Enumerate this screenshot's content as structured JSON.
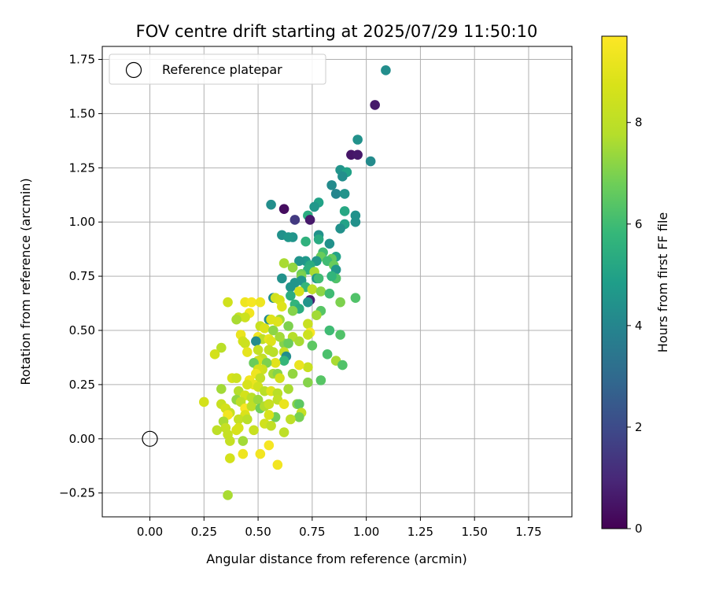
{
  "chart_data": {
    "type": "scatter",
    "title": "FOV centre drift starting at 2025/07/29 11:50:10",
    "xlabel": "Angular distance from reference (arcmin)",
    "ylabel": "Rotation from reference (arcmin)",
    "colorbar_label": "Hours from first FF file",
    "xlim": [
      -0.22,
      1.95
    ],
    "ylim": [
      -0.36,
      1.81
    ],
    "clim": [
      0,
      9.7
    ],
    "xticks": [
      "0.00",
      "0.25",
      "0.50",
      "0.75",
      "1.00",
      "1.25",
      "1.50",
      "1.75"
    ],
    "yticks": [
      "−0.25",
      "0.00",
      "0.25",
      "0.50",
      "0.75",
      "1.00",
      "1.25",
      "1.50",
      "1.75"
    ],
    "colorbar_ticks": [
      "0",
      "2",
      "4",
      "6",
      "8"
    ],
    "grid": true,
    "legend": {
      "position": "top-left",
      "entries": [
        "Reference platepar"
      ]
    },
    "reference_point": {
      "x": 0.0,
      "y": 0.0
    },
    "points": [
      [
        1.09,
        1.7,
        4.3
      ],
      [
        1.04,
        1.54,
        0.6
      ],
      [
        0.96,
        1.38,
        4.4
      ],
      [
        0.93,
        1.31,
        0.5
      ],
      [
        0.96,
        1.31,
        0.6
      ],
      [
        1.02,
        1.28,
        4.2
      ],
      [
        0.88,
        1.24,
        4.5
      ],
      [
        0.91,
        1.23,
        5.0
      ],
      [
        0.89,
        1.21,
        4.3
      ],
      [
        0.84,
        1.17,
        4.2
      ],
      [
        0.86,
        1.13,
        4.0
      ],
      [
        0.9,
        1.13,
        4.5
      ],
      [
        0.56,
        1.08,
        4.3
      ],
      [
        0.62,
        1.06,
        0.3
      ],
      [
        0.78,
        1.09,
        5.0
      ],
      [
        0.76,
        1.07,
        4.6
      ],
      [
        0.73,
        1.03,
        5.4
      ],
      [
        0.74,
        1.01,
        0.6
      ],
      [
        0.67,
        1.01,
        1.5
      ],
      [
        0.9,
        1.05,
        5.2
      ],
      [
        0.95,
        1.03,
        4.4
      ],
      [
        0.95,
        1.0,
        4.4
      ],
      [
        0.9,
        0.99,
        5.0
      ],
      [
        0.88,
        0.97,
        4.4
      ],
      [
        0.61,
        0.94,
        4.4
      ],
      [
        0.66,
        0.93,
        4.5
      ],
      [
        0.64,
        0.93,
        4.6
      ],
      [
        0.78,
        0.94,
        4.4
      ],
      [
        0.78,
        0.92,
        5.3
      ],
      [
        0.72,
        0.91,
        5.6
      ],
      [
        0.83,
        0.9,
        4.4
      ],
      [
        0.8,
        0.86,
        6.0
      ],
      [
        0.79,
        0.84,
        6.7
      ],
      [
        0.86,
        0.84,
        5.0
      ],
      [
        0.84,
        0.83,
        6.6
      ],
      [
        0.77,
        0.82,
        4.6
      ],
      [
        0.72,
        0.82,
        4.7
      ],
      [
        0.69,
        0.82,
        4.5
      ],
      [
        0.62,
        0.81,
        7.6
      ],
      [
        0.82,
        0.82,
        6.0
      ],
      [
        0.74,
        0.8,
        5.4
      ],
      [
        0.85,
        0.8,
        6.7
      ],
      [
        0.73,
        0.78,
        5.5
      ],
      [
        0.86,
        0.78,
        4.6
      ],
      [
        0.66,
        0.79,
        7.3
      ],
      [
        0.76,
        0.77,
        7.6
      ],
      [
        0.7,
        0.76,
        6.7
      ],
      [
        0.7,
        0.75,
        7.0
      ],
      [
        0.61,
        0.74,
        4.4
      ],
      [
        0.7,
        0.73,
        4.6
      ],
      [
        0.77,
        0.74,
        4.6
      ],
      [
        0.86,
        0.74,
        6.3
      ],
      [
        0.84,
        0.75,
        5.7
      ],
      [
        0.78,
        0.74,
        6.0
      ],
      [
        0.67,
        0.72,
        4.5
      ],
      [
        0.72,
        0.7,
        5.8
      ],
      [
        0.65,
        0.7,
        4.5
      ],
      [
        0.75,
        0.69,
        8.0
      ],
      [
        0.79,
        0.68,
        7.2
      ],
      [
        0.69,
        0.68,
        8.6
      ],
      [
        0.83,
        0.67,
        6.0
      ],
      [
        0.65,
        0.66,
        5.4
      ],
      [
        0.57,
        0.65,
        4.2
      ],
      [
        0.58,
        0.65,
        8.5
      ],
      [
        0.6,
        0.64,
        8.7
      ],
      [
        0.74,
        0.64,
        0.8
      ],
      [
        0.73,
        0.63,
        4.5
      ],
      [
        0.88,
        0.63,
        7.0
      ],
      [
        0.95,
        0.65,
        6.3
      ],
      [
        0.67,
        0.62,
        5.7
      ],
      [
        0.61,
        0.61,
        8.9
      ],
      [
        0.69,
        0.6,
        5.4
      ],
      [
        0.66,
        0.59,
        7.1
      ],
      [
        0.79,
        0.59,
        6.4
      ],
      [
        0.77,
        0.57,
        7.5
      ],
      [
        0.36,
        0.63,
        8.5
      ],
      [
        0.44,
        0.63,
        9.3
      ],
      [
        0.47,
        0.63,
        9.5
      ],
      [
        0.51,
        0.63,
        9.3
      ],
      [
        0.46,
        0.58,
        9.4
      ],
      [
        0.41,
        0.56,
        8.2
      ],
      [
        0.44,
        0.56,
        8.4
      ],
      [
        0.4,
        0.55,
        7.6
      ],
      [
        0.55,
        0.55,
        4.2
      ],
      [
        0.56,
        0.55,
        8.9
      ],
      [
        0.6,
        0.55,
        7.5
      ],
      [
        0.51,
        0.52,
        8.3
      ],
      [
        0.53,
        0.51,
        8.8
      ],
      [
        0.57,
        0.5,
        7.2
      ],
      [
        0.59,
        0.54,
        8.9
      ],
      [
        0.64,
        0.52,
        7.0
      ],
      [
        0.73,
        0.53,
        8.3
      ],
      [
        0.83,
        0.5,
        6.0
      ],
      [
        0.88,
        0.48,
        6.3
      ],
      [
        0.74,
        0.49,
        9.6
      ],
      [
        0.73,
        0.48,
        8.4
      ],
      [
        0.5,
        0.47,
        9.4
      ],
      [
        0.52,
        0.46,
        8.0
      ],
      [
        0.55,
        0.46,
        9.1
      ],
      [
        0.56,
        0.45,
        8.9
      ],
      [
        0.62,
        0.44,
        7.1
      ],
      [
        0.66,
        0.47,
        7.8
      ],
      [
        0.6,
        0.47,
        7.5
      ],
      [
        0.64,
        0.44,
        6.7
      ],
      [
        0.69,
        0.45,
        7.6
      ],
      [
        0.75,
        0.43,
        6.5
      ],
      [
        0.49,
        0.45,
        4.2
      ],
      [
        0.5,
        0.41,
        8.2
      ],
      [
        0.55,
        0.41,
        8.1
      ],
      [
        0.57,
        0.4,
        7.9
      ],
      [
        0.62,
        0.4,
        8.3
      ],
      [
        0.42,
        0.48,
        9.2
      ],
      [
        0.43,
        0.45,
        8.6
      ],
      [
        0.44,
        0.44,
        8.4
      ],
      [
        0.33,
        0.42,
        7.9
      ],
      [
        0.3,
        0.39,
        8.6
      ],
      [
        0.45,
        0.4,
        9.1
      ],
      [
        0.63,
        0.38,
        4.3
      ],
      [
        0.62,
        0.36,
        5.8
      ],
      [
        0.58,
        0.35,
        9.0
      ],
      [
        0.52,
        0.37,
        8.1
      ],
      [
        0.5,
        0.36,
        8.5
      ],
      [
        0.54,
        0.35,
        7.0
      ],
      [
        0.48,
        0.35,
        6.7
      ],
      [
        0.82,
        0.39,
        6.2
      ],
      [
        0.86,
        0.36,
        7.6
      ],
      [
        0.89,
        0.34,
        6.3
      ],
      [
        0.73,
        0.33,
        8.3
      ],
      [
        0.69,
        0.34,
        9.2
      ],
      [
        0.66,
        0.3,
        7.3
      ],
      [
        0.52,
        0.32,
        8.4
      ],
      [
        0.5,
        0.32,
        8.6
      ],
      [
        0.49,
        0.3,
        9.3
      ],
      [
        0.57,
        0.3,
        7.5
      ],
      [
        0.59,
        0.3,
        7.1
      ],
      [
        0.6,
        0.28,
        8.6
      ],
      [
        0.51,
        0.28,
        8.1
      ],
      [
        0.38,
        0.28,
        8.7
      ],
      [
        0.4,
        0.28,
        8.4
      ],
      [
        0.46,
        0.27,
        9.4
      ],
      [
        0.48,
        0.25,
        9.2
      ],
      [
        0.5,
        0.24,
        8.5
      ],
      [
        0.53,
        0.22,
        7.9
      ],
      [
        0.73,
        0.26,
        7.1
      ],
      [
        0.79,
        0.27,
        6.4
      ],
      [
        0.33,
        0.23,
        7.5
      ],
      [
        0.41,
        0.22,
        7.8
      ],
      [
        0.44,
        0.2,
        8.6
      ],
      [
        0.47,
        0.19,
        7.9
      ],
      [
        0.56,
        0.22,
        8.9
      ],
      [
        0.59,
        0.21,
        7.9
      ],
      [
        0.64,
        0.23,
        7.6
      ],
      [
        0.45,
        0.25,
        8.7
      ],
      [
        0.25,
        0.17,
        8.6
      ],
      [
        0.33,
        0.16,
        8.3
      ],
      [
        0.35,
        0.14,
        8.6
      ],
      [
        0.37,
        0.12,
        8.3
      ],
      [
        0.36,
        0.11,
        9.4
      ],
      [
        0.4,
        0.18,
        7.3
      ],
      [
        0.42,
        0.17,
        8.0
      ],
      [
        0.44,
        0.14,
        9.6
      ],
      [
        0.44,
        0.11,
        8.8
      ],
      [
        0.47,
        0.15,
        8.0
      ],
      [
        0.5,
        0.18,
        7.4
      ],
      [
        0.51,
        0.14,
        6.8
      ],
      [
        0.53,
        0.15,
        7.7
      ],
      [
        0.55,
        0.16,
        8.3
      ],
      [
        0.59,
        0.18,
        8.1
      ],
      [
        0.62,
        0.16,
        9.2
      ],
      [
        0.68,
        0.16,
        7.1
      ],
      [
        0.69,
        0.16,
        6.5
      ],
      [
        0.7,
        0.12,
        8.2
      ],
      [
        0.69,
        0.1,
        6.9
      ],
      [
        0.65,
        0.09,
        8.0
      ],
      [
        0.58,
        0.1,
        6.8
      ],
      [
        0.55,
        0.11,
        8.7
      ],
      [
        0.53,
        0.07,
        8.5
      ],
      [
        0.56,
        0.06,
        8.1
      ],
      [
        0.41,
        0.09,
        8.2
      ],
      [
        0.45,
        0.09,
        7.9
      ],
      [
        0.34,
        0.08,
        7.6
      ],
      [
        0.35,
        0.05,
        8.2
      ],
      [
        0.31,
        0.04,
        8.0
      ],
      [
        0.36,
        0.02,
        8.2
      ],
      [
        0.4,
        0.04,
        8.7
      ],
      [
        0.41,
        0.05,
        8.7
      ],
      [
        0.48,
        0.04,
        8.3
      ],
      [
        0.37,
        -0.01,
        8.2
      ],
      [
        0.43,
        -0.01,
        7.5
      ],
      [
        0.62,
        0.03,
        8.0
      ],
      [
        0.55,
        -0.03,
        9.5
      ],
      [
        0.37,
        -0.09,
        8.6
      ],
      [
        0.43,
        -0.07,
        9.3
      ],
      [
        0.51,
        -0.07,
        9.4
      ],
      [
        0.59,
        -0.12,
        9.4
      ],
      [
        0.36,
        -0.26,
        7.6
      ]
    ]
  }
}
